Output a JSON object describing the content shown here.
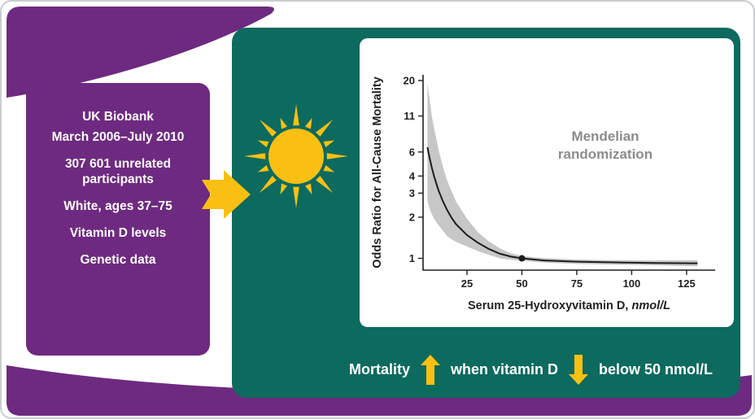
{
  "colors": {
    "purple": "#6e2a80",
    "teal": "#0d6a5e",
    "yellow": "#f9c013",
    "annotation_gray": "#8a8c8e",
    "ci_band_gray": "#b9b9b9"
  },
  "info_box": {
    "lines": [
      "UK Biobank",
      "March 2006–July 2010",
      "307 601 unrelated participants",
      "White, ages 37–75",
      "Vitamin D levels",
      "Genetic data"
    ]
  },
  "chart_data": {
    "type": "line",
    "ylabel": "Odds Ratio for All-Cause Mortality",
    "xlabel_main": "Serum 25-Hydroxyvitamin D,",
    "xlabel_unit": "nmol/L",
    "annotation_lines": [
      "Mendelian",
      "randomization"
    ],
    "y_scale": "log",
    "x_ticks": [
      25,
      50,
      75,
      100,
      125
    ],
    "y_ticks": [
      1,
      2,
      3,
      4,
      6,
      11,
      20
    ],
    "xlim": [
      5,
      138
    ],
    "ylim": [
      0.82,
      22
    ],
    "series": [
      {
        "name": "odds-ratio",
        "x": [
          7,
          8,
          9,
          10,
          12,
          14,
          16,
          18,
          20,
          25,
          30,
          35,
          40,
          45,
          50,
          60,
          75,
          90,
          110,
          130
        ],
        "y": [
          6.5,
          5.4,
          4.6,
          4.0,
          3.15,
          2.62,
          2.25,
          1.98,
          1.78,
          1.48,
          1.3,
          1.17,
          1.08,
          1.03,
          1.0,
          0.965,
          0.945,
          0.935,
          0.925,
          0.92
        ]
      }
    ],
    "ci": {
      "upper": [
        19,
        14.5,
        11,
        9.0,
        6.3,
        4.7,
        3.7,
        3.1,
        2.6,
        1.95,
        1.55,
        1.33,
        1.18,
        1.09,
        1.04,
        1.005,
        0.98,
        0.97,
        0.965,
        0.97
      ],
      "lower": [
        2.6,
        2.3,
        2.1,
        1.95,
        1.75,
        1.6,
        1.45,
        1.38,
        1.32,
        1.22,
        1.13,
        1.06,
        1.0,
        0.975,
        0.96,
        0.93,
        0.91,
        0.9,
        0.89,
        0.875
      ]
    },
    "reference_point": {
      "x": 50,
      "y": 1.0
    },
    "grid": false,
    "legend": false
  },
  "caption": {
    "mortality": "Mortality",
    "middle": "when vitamin D",
    "end": "below 50 nmol/L"
  }
}
